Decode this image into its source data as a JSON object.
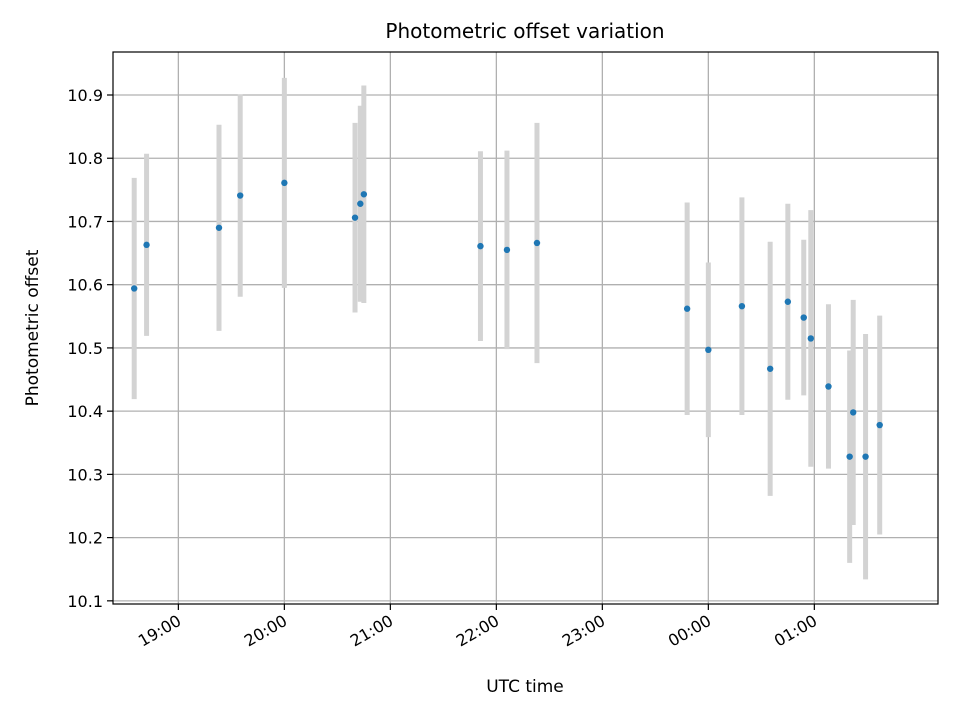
{
  "chart_data": {
    "type": "scatter",
    "title": "Photometric offset variation",
    "xlabel": "UTC time",
    "ylabel": "Photometric offset",
    "grid": true,
    "x_ticks": [
      "19:00",
      "20:00",
      "21:00",
      "22:00",
      "23:00",
      "00:00",
      "01:00"
    ],
    "y_ticks": [
      "10.1",
      "10.2",
      "10.3",
      "10.4",
      "10.5",
      "10.6",
      "10.7",
      "10.8",
      "10.9"
    ],
    "xlim": [
      "18:23",
      "02:10"
    ],
    "ylim": [
      10.095,
      10.968
    ],
    "colors": {
      "points": "#1f77b4",
      "error_bars": "#d3d3d3",
      "grid": "#b0b0b0",
      "axes": "#000000"
    },
    "series": [
      {
        "points": [
          {
            "x": "18:35",
            "y": 10.594,
            "yerr": 0.175
          },
          {
            "x": "18:42",
            "y": 10.663,
            "yerr": 0.144
          },
          {
            "x": "19:23",
            "y": 10.69,
            "yerr": 0.163
          },
          {
            "x": "19:35",
            "y": 10.741,
            "yerr": 0.16
          },
          {
            "x": "20:00",
            "y": 10.761,
            "yerr": 0.166
          },
          {
            "x": "20:40",
            "y": 10.706,
            "yerr": 0.15
          },
          {
            "x": "20:43",
            "y": 10.728,
            "yerr": 0.155
          },
          {
            "x": "20:45",
            "y": 10.743,
            "yerr": 0.172
          },
          {
            "x": "21:51",
            "y": 10.661,
            "yerr": 0.15
          },
          {
            "x": "22:06",
            "y": 10.655,
            "yerr": 0.157
          },
          {
            "x": "22:23",
            "y": 10.666,
            "yerr": 0.19
          },
          {
            "x": "23:48",
            "y": 10.562,
            "yerr": 0.168
          },
          {
            "x": "00:00",
            "y": 10.497,
            "yerr": 0.138
          },
          {
            "x": "00:19",
            "y": 10.566,
            "yerr": 0.172
          },
          {
            "x": "00:35",
            "y": 10.467,
            "yerr": 0.201
          },
          {
            "x": "00:45",
            "y": 10.573,
            "yerr": 0.155
          },
          {
            "x": "00:54",
            "y": 10.548,
            "yerr": 0.123
          },
          {
            "x": "00:58",
            "y": 10.515,
            "yerr": 0.203
          },
          {
            "x": "01:08",
            "y": 10.439,
            "yerr": 0.13
          },
          {
            "x": "01:20",
            "y": 10.328,
            "yerr": 0.168
          },
          {
            "x": "01:22",
            "y": 10.398,
            "yerr": 0.178
          },
          {
            "x": "01:29",
            "y": 10.328,
            "yerr": 0.194
          },
          {
            "x": "01:37",
            "y": 10.378,
            "yerr": 0.173
          }
        ]
      }
    ]
  }
}
